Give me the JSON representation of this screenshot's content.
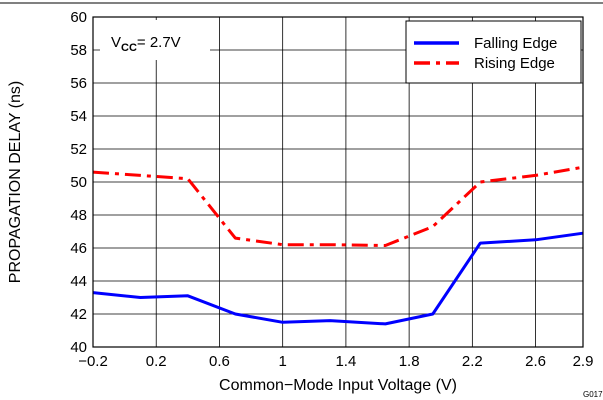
{
  "chart_data": {
    "type": "line",
    "title": "",
    "xlabel": "Common−Mode Input Voltage (V)",
    "ylabel": "PROPAGATION DELAY (ns)",
    "xlim": [
      -0.2,
      2.9
    ],
    "ylim": [
      40,
      60
    ],
    "x_ticks": [
      -0.2,
      0.2,
      0.6,
      1.0,
      1.4,
      1.8,
      2.2,
      2.6,
      2.9
    ],
    "x_tick_labels": [
      "−0.2",
      "0.2",
      "0.6",
      "1",
      "1.4",
      "1.8",
      "2.2",
      "2.6",
      "2.9"
    ],
    "y_ticks": [
      40,
      42,
      44,
      46,
      48,
      50,
      52,
      54,
      56,
      58,
      60
    ],
    "y_tick_labels": [
      "40",
      "42",
      "44",
      "46",
      "48",
      "50",
      "52",
      "54",
      "56",
      "58",
      "60"
    ],
    "grid": true,
    "legend_position": "top-right",
    "annotation": {
      "prefix": "V",
      "subscript": "CC",
      "suffix": "= 2.7V"
    },
    "figure_id": "G017",
    "series": [
      {
        "name": "Falling Edge",
        "color": "#0000ff",
        "dash": "solid",
        "x": [
          -0.2,
          0.1,
          0.4,
          0.7,
          1.0,
          1.3,
          1.65,
          1.95,
          2.25,
          2.6,
          2.9
        ],
        "y": [
          43.3,
          43.0,
          43.1,
          42.0,
          41.5,
          41.6,
          41.4,
          42.0,
          46.3,
          46.5,
          46.9
        ]
      },
      {
        "name": "Rising Edge",
        "color": "#ff0000",
        "dash": "dashdot",
        "x": [
          -0.2,
          0.1,
          0.4,
          0.7,
          1.0,
          1.3,
          1.65,
          1.95,
          2.25,
          2.6,
          2.9
        ],
        "y": [
          50.6,
          50.4,
          50.2,
          46.6,
          46.2,
          46.2,
          46.15,
          47.3,
          50.0,
          50.4,
          50.9
        ]
      }
    ]
  }
}
